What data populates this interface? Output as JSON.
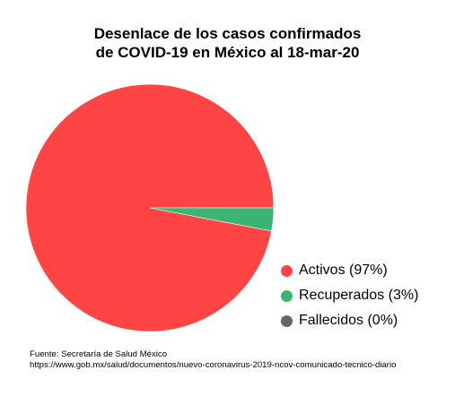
{
  "chart_data": {
    "type": "pie",
    "title_lines": [
      "Desenlace de los casos confirmados",
      "de COVID-19 en México al 18-mar-20"
    ],
    "slices": [
      {
        "label": "Activos (97%)",
        "value": 97,
        "color": "#ff4444"
      },
      {
        "label": "Recuperados (3%)",
        "value": 3,
        "color": "#3cb371"
      },
      {
        "label": "Fallecidos (0%)",
        "value": 0,
        "color": "#666666"
      }
    ],
    "legend_position": "right"
  },
  "source": {
    "line1": "Fuente: Secretaría de Salud México",
    "line2": "https://www.gob.mx/salud/documentos/nuevo-coronavirus-2019-ncov-comunicado-tecnico-diario"
  }
}
